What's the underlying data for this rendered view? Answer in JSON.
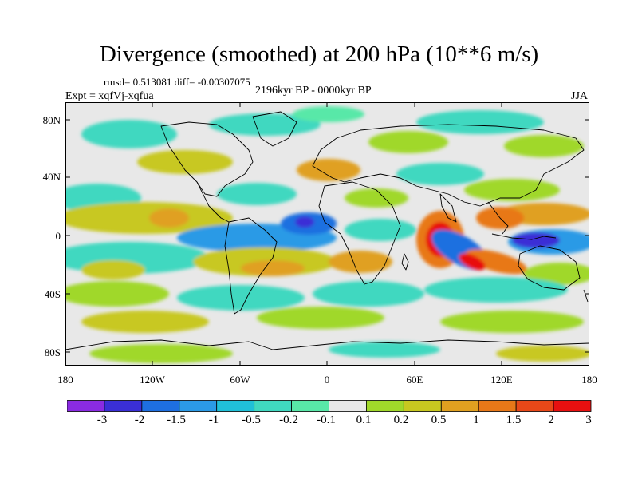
{
  "header": {
    "title": "Divergence (smoothed) at 200 hPa (10**6 m/s)",
    "stats": "rmsd= 0.513081 diff= -0.00307075",
    "experiment": "Expt = xqfVj-xqfua",
    "period": "2196kyr BP - 0000kyr BP",
    "season": "JJA"
  },
  "axes": {
    "y_ticks": [
      "80N",
      "40N",
      "0",
      "40S",
      "80S"
    ],
    "x_ticks": [
      "180",
      "120W",
      "60W",
      "0",
      "60E",
      "120E",
      "180"
    ]
  },
  "colorbar": {
    "labels": [
      "-3",
      "-2",
      "-1.5",
      "-1",
      "-0.5",
      "-0.2",
      "-0.1",
      "0.1",
      "0.2",
      "0.5",
      "1",
      "1.5",
      "2",
      "3"
    ],
    "colors": [
      "#8a2be2",
      "#3a2fd6",
      "#1e6fe0",
      "#2b9ae6",
      "#20c0d8",
      "#40d8c0",
      "#58e8a8",
      "#e8e8e8",
      "#a0d82a",
      "#c8c820",
      "#e0a020",
      "#e87818",
      "#e84818",
      "#e81010"
    ]
  },
  "field_features": [
    {
      "id": "west-indian-max",
      "lon": 58,
      "lat": 2,
      "value": 3.2
    },
    {
      "id": "indian-min",
      "lon": 72,
      "lat": -12,
      "value": -2.1
    },
    {
      "id": "maritime-min",
      "lon": 125,
      "lat": -8,
      "value": -2.5
    },
    {
      "id": "south-indian-max",
      "lon": 95,
      "lat": -18,
      "value": 1.9
    },
    {
      "id": "atlantic-min",
      "lon": -15,
      "lat": 8,
      "value": -2.2
    },
    {
      "id": "west-pacific-max",
      "lon": 145,
      "lat": 12,
      "value": 1.6
    },
    {
      "id": "east-pacific-max",
      "lon": -160,
      "lat": 8,
      "value": 0.9
    },
    {
      "id": "central-pacific-min",
      "lon": -110,
      "lat": 3,
      "value": -0.8
    },
    {
      "id": "south-pacific-max",
      "lon": -70,
      "lat": -20,
      "value": 0.8
    },
    {
      "id": "south-atlantic-max",
      "lon": -10,
      "lat": -20,
      "value": 0.9
    }
  ]
}
